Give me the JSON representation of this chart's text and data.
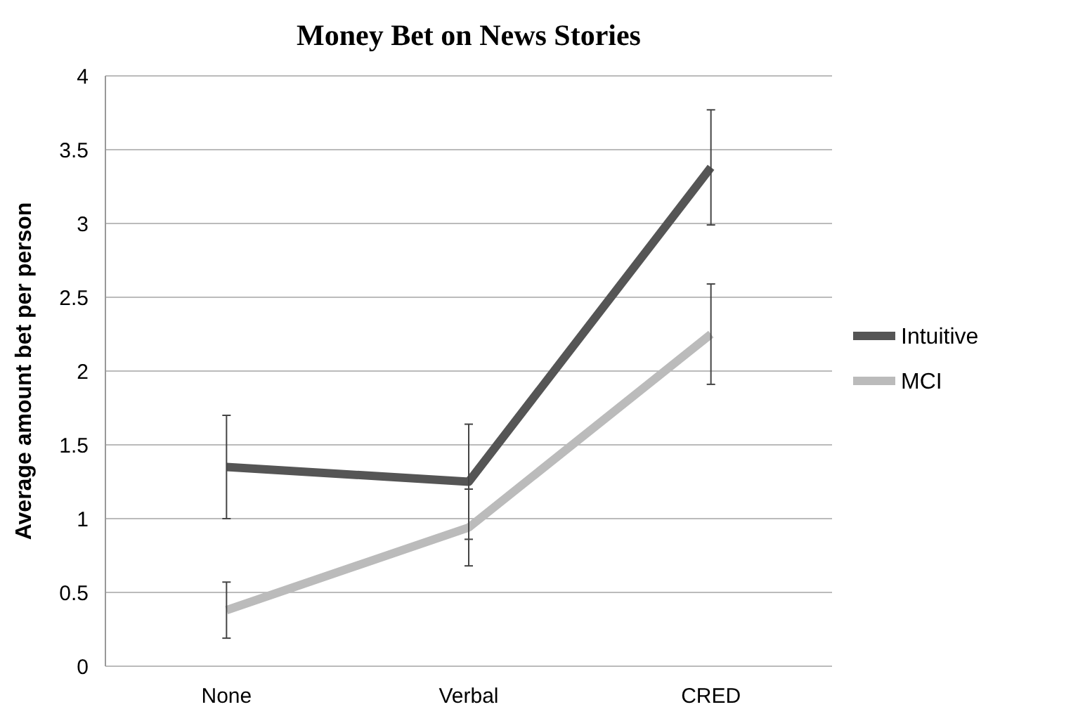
{
  "chart_data": {
    "type": "line",
    "title": "Money Bet on News Stories",
    "ylabel": "Average amount bet per person",
    "categories": [
      "None",
      "Verbal",
      "CRED"
    ],
    "series": [
      {
        "name": "Intuitive",
        "color": "#555555",
        "values": [
          1.35,
          1.25,
          3.38
        ],
        "errors": [
          0.35,
          0.39,
          0.39
        ]
      },
      {
        "name": "MCI",
        "color": "#bbbbbb",
        "values": [
          0.38,
          0.94,
          2.25
        ],
        "errors": [
          0.19,
          0.26,
          0.34
        ]
      }
    ],
    "ylim": [
      0,
      4
    ],
    "yticks": [
      0,
      0.5,
      1,
      1.5,
      2,
      2.5,
      3,
      3.5,
      4
    ],
    "grid": "y",
    "legend": "right",
    "marker": "none",
    "line_style": "solid"
  }
}
